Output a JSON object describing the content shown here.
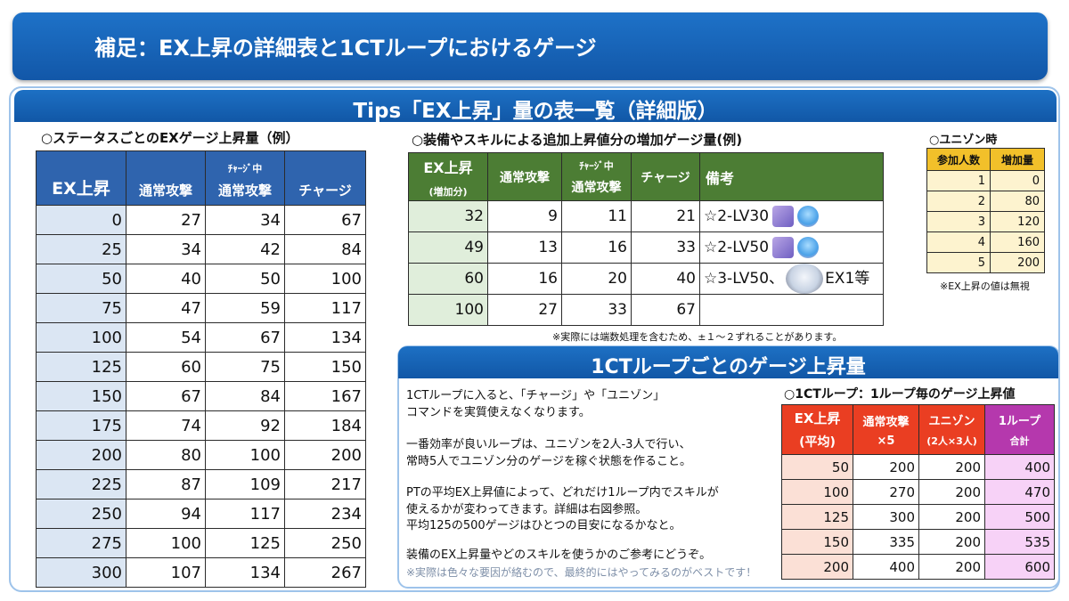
{
  "header": {
    "title": "補足：EX上昇の詳細表と1CTループにおけるゲージ"
  },
  "tips": {
    "title": "Tips「EX上昇」量の表一覧（詳細版）"
  },
  "status_table": {
    "label": "○ステータスごとのEXゲージ上昇量（例）",
    "headers": {
      "ex": "EX上昇",
      "normal": "通常攻撃",
      "charge_top": "ﾁｬｰｼﾞ中",
      "charge_normal": "通常攻撃",
      "charge": "チャージ"
    },
    "rows": [
      [
        "0",
        "27",
        "34",
        "67"
      ],
      [
        "25",
        "34",
        "42",
        "84"
      ],
      [
        "50",
        "40",
        "50",
        "100"
      ],
      [
        "75",
        "47",
        "59",
        "117"
      ],
      [
        "100",
        "54",
        "67",
        "134"
      ],
      [
        "125",
        "60",
        "75",
        "150"
      ],
      [
        "150",
        "67",
        "84",
        "167"
      ],
      [
        "175",
        "74",
        "92",
        "184"
      ],
      [
        "200",
        "80",
        "100",
        "200"
      ],
      [
        "225",
        "87",
        "109",
        "217"
      ],
      [
        "250",
        "94",
        "117",
        "234"
      ],
      [
        "275",
        "100",
        "125",
        "250"
      ],
      [
        "300",
        "107",
        "134",
        "267"
      ]
    ]
  },
  "equip_table": {
    "label": "○装備やスキルによる追加上昇値分の増加ゲージ量(例)",
    "headers": {
      "ex": "EX上昇",
      "ex_sub": "(増加分)",
      "normal": "通常攻撃",
      "charge_top": "ﾁｬｰｼﾞ中",
      "charge_normal": "通常攻撃",
      "charge": "チャージ",
      "note": "備考"
    },
    "rows": [
      {
        "ex": "32",
        "normal": "9",
        "charge_normal": "11",
        "charge": "21",
        "note": "☆2-LV30",
        "icons": [
          "cards-icon",
          "tree-spirit-icon"
        ]
      },
      {
        "ex": "49",
        "normal": "13",
        "charge_normal": "16",
        "charge": "33",
        "note": "☆2-LV50",
        "icons": [
          "cards-icon",
          "tree-spirit-icon"
        ]
      },
      {
        "ex": "60",
        "normal": "16",
        "charge_normal": "20",
        "charge": "40",
        "note": "☆3-LV50、",
        "note_after": "EX1等",
        "icons": [
          "character-icon"
        ]
      },
      {
        "ex": "100",
        "normal": "27",
        "charge_normal": "33",
        "charge": "67",
        "note": ""
      }
    ],
    "footnote": "※実際には端数処理を含むため、±１～２ずれることがあります。"
  },
  "unison_table": {
    "label": "○ユニゾン時",
    "headers": {
      "people": "参加人数",
      "increase": "増加量"
    },
    "rows": [
      [
        "1",
        "0"
      ],
      [
        "2",
        "80"
      ],
      [
        "3",
        "120"
      ],
      [
        "4",
        "160"
      ],
      [
        "5",
        "200"
      ]
    ],
    "footnote": "※EX上昇の値は無視"
  },
  "ct_section": {
    "title": "1CTループごとのゲージ上昇量",
    "paragraphs": [
      "1CTループに入ると、「チャージ」や「ユニゾン」",
      "コマンドを実質使えなくなります。",
      "一番効率が良いループは、ユニゾンを2人-3人で行い、",
      "常時5人でユニゾン分のゲージを稼ぐ状態を作ること。",
      "PTの平均EX上昇値によって、どれだけ1ループ内でスキルが",
      "使えるかが変わってきます。詳細は右図参照。",
      "平均125の500ゲージはひとつの目安になるかなと。",
      "装備のEX上昇量やどのスキルを使うかのご参考にどうぞ。"
    ],
    "caution": "※実際は色々な要因が絡むので、最終的にはやってみるのがベストです！"
  },
  "loop_table": {
    "label": "○1CTループ：1ループ毎のゲージ上昇値",
    "headers": {
      "ex": "EX上昇",
      "ex_sub": "(平均)",
      "normal": "通常攻撃",
      "normal_sub": "×5",
      "unison": "ユニゾン",
      "unison_sub": "(2人×3人)",
      "total": "1ループ",
      "total_sub": "合計"
    },
    "rows": [
      [
        "50",
        "200",
        "200",
        "400"
      ],
      [
        "100",
        "270",
        "200",
        "470"
      ],
      [
        "125",
        "300",
        "200",
        "500"
      ],
      [
        "150",
        "335",
        "200",
        "535"
      ],
      [
        "200",
        "400",
        "200",
        "600"
      ]
    ]
  },
  "colors": {
    "banner": "#1e72c8",
    "table1_header": "#2f64ae",
    "table2_header": "#4c7d34",
    "table3_header": "#f2c02a",
    "table4_header": "#ea3e22",
    "table4_total_header": "#b538ad"
  }
}
